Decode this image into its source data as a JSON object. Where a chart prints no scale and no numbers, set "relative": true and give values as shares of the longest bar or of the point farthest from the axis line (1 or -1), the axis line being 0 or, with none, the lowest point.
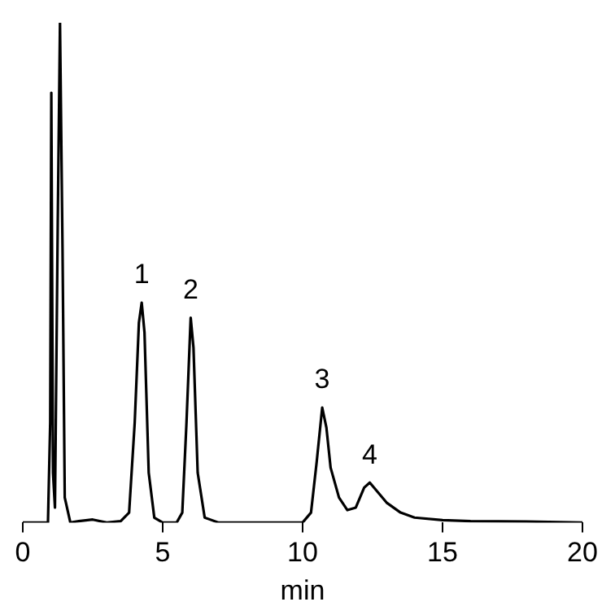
{
  "chart_data": {
    "type": "line",
    "relative": true,
    "xlabel": "min",
    "xlim": [
      0,
      20
    ],
    "xticks": [
      0,
      5,
      10,
      15,
      20
    ],
    "color": "#000000",
    "grid": false,
    "legend": false,
    "marker": "none",
    "line_style": "solid",
    "tick_labels": "x",
    "x": [
      0,
      0.9,
      0.98,
      1.02,
      1.08,
      1.15,
      1.25,
      1.33,
      1.42,
      1.5,
      1.7,
      2.0,
      2.5,
      3.0,
      3.5,
      3.8,
      4.0,
      4.15,
      4.25,
      4.35,
      4.5,
      4.7,
      5.0,
      5.5,
      5.7,
      5.85,
      6.0,
      6.1,
      6.25,
      6.5,
      7,
      8,
      9,
      10,
      10.3,
      10.5,
      10.7,
      10.85,
      11.0,
      11.3,
      11.6,
      11.9,
      12.2,
      12.4,
      12.7,
      13.0,
      13.5,
      14,
      15,
      16,
      18,
      20
    ],
    "values": [
      0,
      0,
      0.2,
      0.86,
      0.1,
      0.03,
      0.6,
      1.0,
      0.55,
      0.05,
      0,
      0.003,
      0.006,
      0,
      0.003,
      0.02,
      0.2,
      0.4,
      0.44,
      0.38,
      0.1,
      0.01,
      0,
      0,
      0.02,
      0.2,
      0.41,
      0.35,
      0.1,
      0.01,
      0,
      0,
      0,
      0,
      0.02,
      0.12,
      0.23,
      0.19,
      0.11,
      0.05,
      0.025,
      0.03,
      0.07,
      0.08,
      0.06,
      0.04,
      0.02,
      0.01,
      0.005,
      0.003,
      0.002,
      0
    ],
    "annotations": [
      {
        "text": "1",
        "x": 4.25,
        "y": 0.44
      },
      {
        "text": "2",
        "x": 6.0,
        "y": 0.41
      },
      {
        "text": "3",
        "x": 10.7,
        "y": 0.23
      },
      {
        "text": "4",
        "x": 12.4,
        "y": 0.08
      }
    ]
  }
}
